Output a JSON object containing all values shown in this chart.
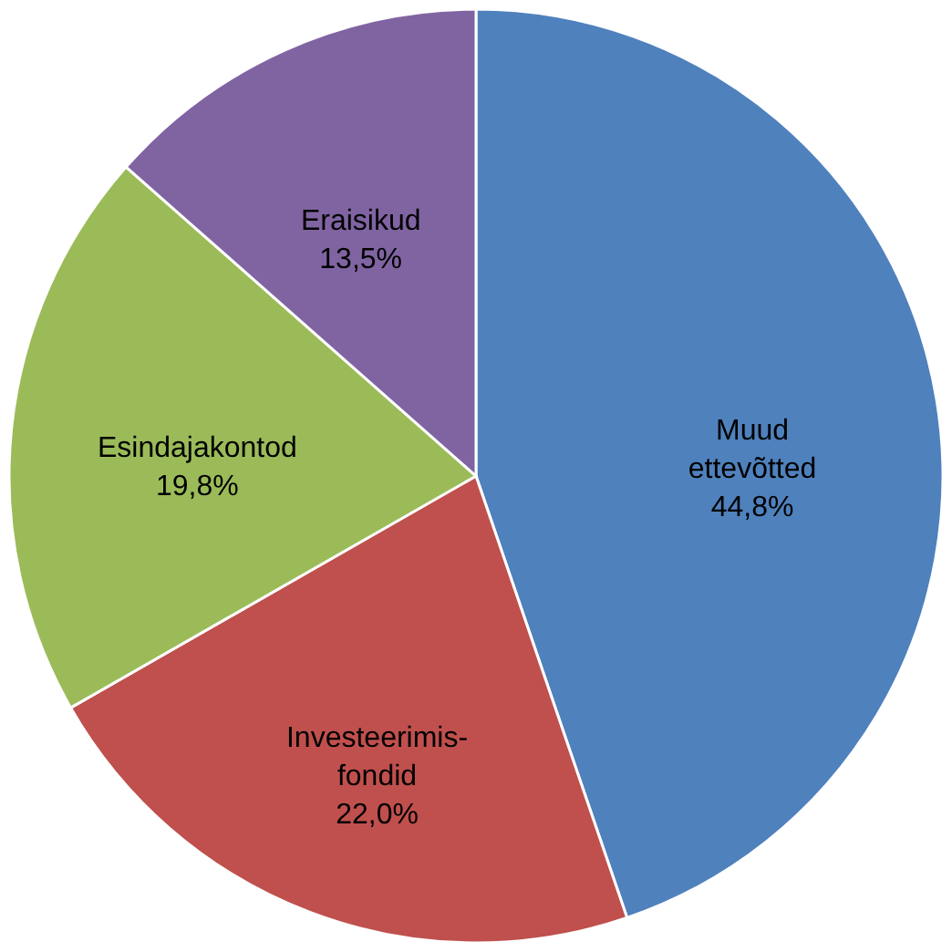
{
  "chart_data": {
    "type": "pie",
    "categories": [
      "Muud ettevõtted",
      "Investeerimis-fondid",
      "Esindajakontod",
      "Eraisikud"
    ],
    "values": [
      44.8,
      22.0,
      19.8,
      13.5
    ],
    "colors": [
      "#4f81bd",
      "#c0504d",
      "#9bbb59",
      "#8064a2"
    ],
    "value_labels": [
      "44,8%",
      "22,0%",
      "19,8%",
      "13,5%"
    ]
  }
}
